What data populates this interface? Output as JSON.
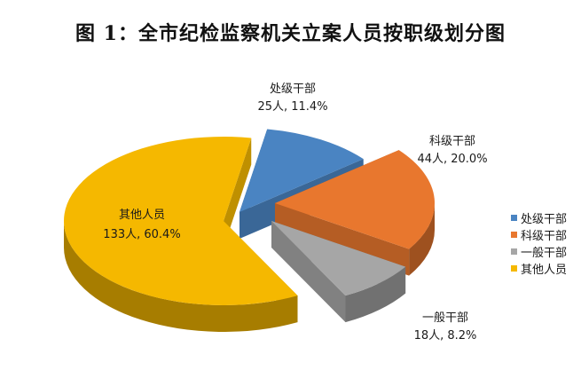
{
  "title": "图 1：全市纪检监察机关立案人员按职级划分图",
  "chart_data": {
    "type": "pie",
    "title": "图 1：全市纪检监察机关立案人员按职级划分图",
    "slices": [
      {
        "name": "处级干部",
        "count": 25,
        "percent": 11.4,
        "label": "25人, 11.4%",
        "color": "#4a84c2"
      },
      {
        "name": "科级干部",
        "count": 44,
        "percent": 20.0,
        "label": "44人, 20.0%",
        "color": "#e8772e"
      },
      {
        "name": "一般干部",
        "count": 18,
        "percent": 8.2,
        "label": "18人, 8.2%",
        "color": "#a6a6a6"
      },
      {
        "name": "其他人员",
        "count": 133,
        "percent": 60.4,
        "label": "133人, 60.4%",
        "color": "#f5b800"
      }
    ],
    "exploded": true,
    "three_d": true,
    "legend_position": "right"
  }
}
